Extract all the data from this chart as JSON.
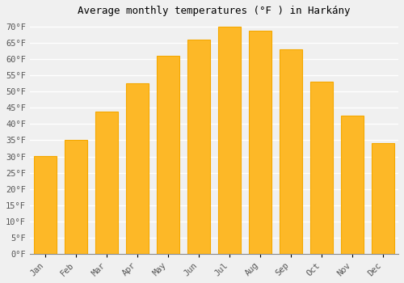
{
  "months": [
    "Jan",
    "Feb",
    "Mar",
    "Apr",
    "May",
    "Jun",
    "Jul",
    "Aug",
    "Sep",
    "Oct",
    "Nov",
    "Dec"
  ],
  "values": [
    30.2,
    35.2,
    43.9,
    52.5,
    61.0,
    66.0,
    70.0,
    68.9,
    63.1,
    53.1,
    42.6,
    34.0
  ],
  "bar_color": "#FDB827",
  "bar_edge_color": "#F5A800",
  "background_color": "#f0f0f0",
  "plot_bg_color": "#f0f0f0",
  "grid_color": "#ffffff",
  "title": "Average monthly temperatures (°F ) in Harkány",
  "title_fontsize": 9,
  "tick_fontsize": 7.5,
  "ylim": [
    0,
    72
  ],
  "yticks": [
    0,
    5,
    10,
    15,
    20,
    25,
    30,
    35,
    40,
    45,
    50,
    55,
    60,
    65,
    70
  ],
  "ylabel_format": "°F"
}
